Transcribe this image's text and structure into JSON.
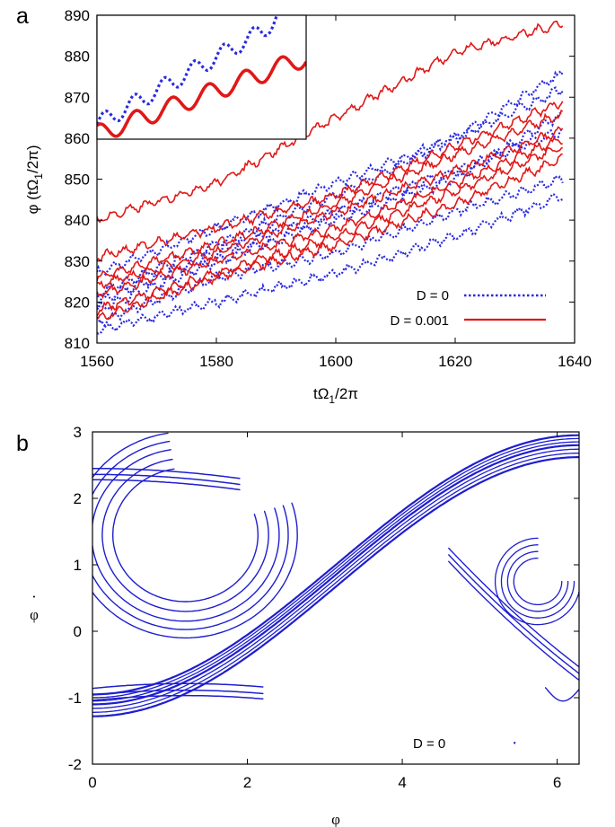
{
  "chart_data": [
    {
      "panel": "a",
      "type": "line",
      "xlabel": "tΩ1/2π",
      "ylabel": "φ (tΩ1/2π)",
      "xlim": [
        1560,
        1640
      ],
      "ylim": [
        810,
        890
      ],
      "xticks": [
        "1560",
        "1580",
        "1600",
        "1620",
        "1640"
      ],
      "yticks": [
        "810",
        "820",
        "830",
        "840",
        "850",
        "860",
        "870",
        "880",
        "890"
      ],
      "legend_position": "bottom-right",
      "series": [
        {
          "name": "D = 0",
          "style": "dotted",
          "color": "#2a2ae0",
          "trajectories": [
            {
              "x": [
                1560,
                1580,
                1600,
                1620,
                1638
              ],
              "y": [
                827,
                838,
                849,
                860,
                876
              ]
            },
            {
              "x": [
                1560,
                1580,
                1600,
                1620,
                1638
              ],
              "y": [
                822,
                834,
                846,
                860,
                872
              ]
            },
            {
              "x": [
                1560,
                1580,
                1600,
                1620,
                1638
              ],
              "y": [
                820,
                832,
                842,
                852,
                862
              ]
            },
            {
              "x": [
                1560,
                1580,
                1600,
                1620,
                1638
              ],
              "y": [
                818,
                830,
                840,
                850,
                866
              ]
            },
            {
              "x": [
                1560,
                1580,
                1600,
                1620,
                1638
              ],
              "y": [
                815,
                826,
                832,
                842,
                850
              ]
            },
            {
              "x": [
                1560,
                1580,
                1600,
                1620,
                1638
              ],
              "y": [
                813,
                820,
                827,
                836,
                846
              ]
            }
          ]
        },
        {
          "name": "D = 0.001",
          "style": "solid",
          "color": "#e01818",
          "trajectories": [
            {
              "x": [
                1560,
                1580,
                1600,
                1620,
                1638
              ],
              "y": [
                840,
                849,
                865,
                881,
                888
              ]
            },
            {
              "x": [
                1560,
                1580,
                1600,
                1620,
                1638
              ],
              "y": [
                831,
                838,
                846,
                858,
                869
              ]
            },
            {
              "x": [
                1560,
                1580,
                1600,
                1620,
                1638
              ],
              "y": [
                826,
                834,
                844,
                856,
                866
              ]
            },
            {
              "x": [
                1560,
                1580,
                1600,
                1620,
                1638
              ],
              "y": [
                824,
                832,
                842,
                852,
                862
              ]
            },
            {
              "x": [
                1560,
                1580,
                1600,
                1620,
                1638
              ],
              "y": [
                822,
                830,
                838,
                849,
                860
              ]
            },
            {
              "x": [
                1560,
                1580,
                1600,
                1620,
                1638
              ],
              "y": [
                818,
                827,
                836,
                847,
                858
              ]
            },
            {
              "x": [
                1560,
                1580,
                1600,
                1620,
                1638
              ],
              "y": [
                816,
                826,
                834,
                844,
                855
              ]
            }
          ]
        }
      ],
      "inset": {
        "series": [
          "D = 0",
          "D = 0.001"
        ]
      }
    },
    {
      "panel": "b",
      "type": "scatter",
      "xlabel": "φ",
      "ylabel": "φ̇",
      "xlim": [
        0,
        6.2832
      ],
      "ylim": [
        -2,
        3
      ],
      "xticks": [
        "0",
        "2",
        "4",
        "6"
      ],
      "yticks": [
        "-2",
        "-1",
        "0",
        "1",
        "2",
        "3"
      ],
      "color": "#1e1ed0",
      "annotation": "D = 0"
    }
  ],
  "legend": {
    "d0": "D = 0",
    "d001": "D = 0.001"
  },
  "panels": {
    "a": "a",
    "b": "b"
  },
  "colors": {
    "blue": "#2a2ae0",
    "red": "#e01818",
    "attractor": "#1e1ed0"
  }
}
